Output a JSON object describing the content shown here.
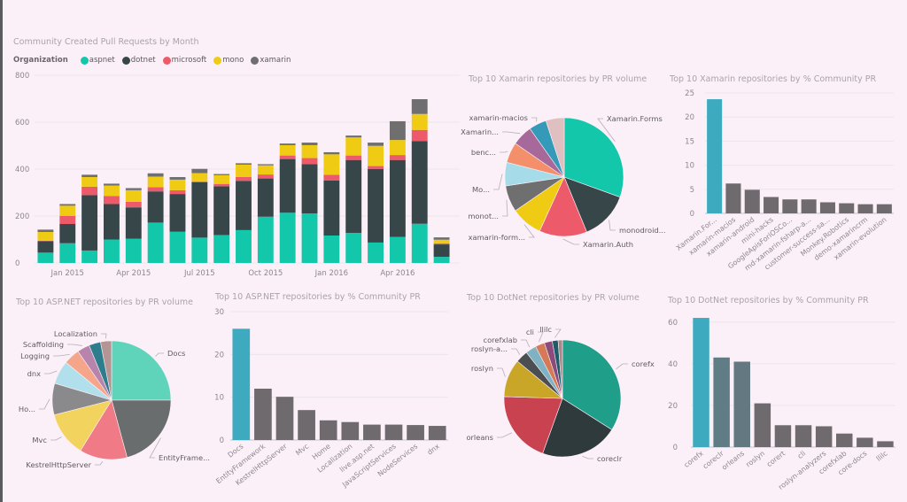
{
  "colors": {
    "background": "#fcf0f8",
    "aspnet": "#13c7ab",
    "dotnet": "#374649",
    "microsoft": "#ed5b6a",
    "mono": "#f0cb14",
    "xamarin": "#6f6f70",
    "bar_high": "#3daabf",
    "bar_low": "#6e6a6e",
    "gridline": "#ebe4ea",
    "tick_text": "#8c888c",
    "label_text": "#5e5b5e"
  },
  "chart_data": [
    {
      "id": "community-prs",
      "type": "bar",
      "stacked": true,
      "title": "Community Created Pull Requests by Month",
      "legend_title": "Organization",
      "legend_position": "top-left",
      "categories": [
        "Dec 2014",
        "Jan 2015",
        "Feb 2015",
        "Mar 2015",
        "Apr 2015",
        "May 2015",
        "Jun 2015",
        "Jul 2015",
        "Aug 2015",
        "Sep 2015",
        "Oct 2015",
        "Nov 2015",
        "Dec 2015",
        "Jan 2016",
        "Feb 2016",
        "Mar 2016",
        "Apr 2016",
        "May 2016",
        "Jun 2016"
      ],
      "x_tick_labels": [
        {
          "index": 1,
          "label": "Jan 2015"
        },
        {
          "index": 4,
          "label": "Apr 2015"
        },
        {
          "index": 7,
          "label": "Jul 2015"
        },
        {
          "index": 10,
          "label": "Oct 2015"
        },
        {
          "index": 13,
          "label": "Jan 2016"
        },
        {
          "index": 16,
          "label": "Apr 2016"
        }
      ],
      "series": [
        {
          "name": "aspnet",
          "color": "#13c7ab",
          "values": [
            44,
            84,
            53,
            100,
            103,
            172,
            133,
            108,
            119,
            140,
            197,
            214,
            211,
            117,
            128,
            87,
            111,
            167,
            26
          ]
        },
        {
          "name": "dotnet",
          "color": "#374649",
          "values": [
            49,
            82,
            236,
            151,
            134,
            133,
            161,
            236,
            208,
            210,
            163,
            229,
            210,
            235,
            311,
            314,
            328,
            352,
            53
          ]
        },
        {
          "name": "microsoft",
          "color": "#ed5b6a",
          "values": [
            2,
            35,
            36,
            34,
            24,
            18,
            16,
            4,
            10,
            17,
            17,
            15,
            26,
            24,
            19,
            12,
            21,
            48,
            5
          ]
        },
        {
          "name": "mono",
          "color": "#f0cb14",
          "values": [
            37,
            43,
            41,
            45,
            49,
            45,
            45,
            35,
            37,
            52,
            39,
            44,
            55,
            87,
            77,
            86,
            64,
            68,
            15
          ]
        },
        {
          "name": "xamarin",
          "color": "#6f6f70",
          "values": [
            10,
            7,
            10,
            8,
            9,
            14,
            11,
            18,
            5,
            6,
            5,
            7,
            11,
            9,
            8,
            14,
            80,
            63,
            10
          ]
        }
      ],
      "ylim": [
        0,
        800
      ],
      "y_ticks": [
        0,
        200,
        400,
        600,
        800
      ],
      "grid": true,
      "xlabel": "",
      "ylabel": ""
    },
    {
      "id": "xamarin-pie",
      "type": "pie",
      "title": "Top 10 Xamarin repositories by PR volume",
      "slices": [
        {
          "label": "Xamarin.Forms",
          "value": 30.5,
          "color": "#13c7ab"
        },
        {
          "label": "monodroid...",
          "value": 13.3,
          "color": "#374649"
        },
        {
          "label": "Xamarin.Auth",
          "value": 13.0,
          "color": "#ed5b6a"
        },
        {
          "label": "xamarin-form...",
          "value": 8.6,
          "color": "#f0cb14"
        },
        {
          "label": "monot...",
          "value": 7.2,
          "color": "#6f6f70"
        },
        {
          "label": "Mo...",
          "value": 6.4,
          "color": "#a6dcea"
        },
        {
          "label": "benc...",
          "value": 5.6,
          "color": "#f38f6b"
        },
        {
          "label": "Xamarin...",
          "value": 5.6,
          "color": "#a66999"
        },
        {
          "label": "xamarin-macios",
          "value": 4.8,
          "color": "#3599b8"
        },
        {
          "label": "",
          "value": 5.0,
          "color": "#dfbfbf"
        }
      ]
    },
    {
      "id": "xamarin-bar",
      "type": "bar",
      "title": "Top 10 Xamarin repositories by % Community PR",
      "categories": [
        "Xamarin.For...",
        "xamarin-macios",
        "xamarin-android",
        "mini-hacks",
        "GoogleApisForiOSCo...",
        "md-xamarin-fsharp-a...",
        "customer-success-sa...",
        "Monkey.Robotics",
        "demo-xamarincrm",
        "xamarin-evolution"
      ],
      "values": [
        23.7,
        6.2,
        4.9,
        3.4,
        2.9,
        2.9,
        2.3,
        2.1,
        1.9,
        1.9
      ],
      "ylim": [
        0,
        25
      ],
      "y_ticks": [
        0,
        5,
        10,
        15,
        20,
        25
      ],
      "grid": true,
      "xlabel": "",
      "ylabel": ""
    },
    {
      "id": "aspnet-pie",
      "type": "pie",
      "title": "Top 10 ASP.NET repositories by PR volume",
      "slices": [
        {
          "label": "Docs",
          "value": 25.0,
          "color": "#5fd4bb"
        },
        {
          "label": "EntityFrame...",
          "value": 20.8,
          "color": "#6a6d6e"
        },
        {
          "label": "KestrelHttpServer",
          "value": 13.0,
          "color": "#f07a85"
        },
        {
          "label": "Mvc",
          "value": 12.2,
          "color": "#f2d35e"
        },
        {
          "label": "Ho...",
          "value": 8.6,
          "color": "#8a8a8c"
        },
        {
          "label": "dnx",
          "value": 6.4,
          "color": "#b1e0ec"
        },
        {
          "label": "Logging",
          "value": 4.4,
          "color": "#f5a58a"
        },
        {
          "label": "Scaffolding",
          "value": 3.4,
          "color": "#b785ac"
        },
        {
          "label": "",
          "value": 3.2,
          "color": "#2e7d8c"
        },
        {
          "label": "Localization",
          "value": 3.0,
          "color": "#b59494"
        }
      ]
    },
    {
      "id": "aspnet-bar",
      "type": "bar",
      "title": "Top 10 ASP.NET repositories by % Community PR",
      "categories": [
        "Docs",
        "EntityFramework",
        "KestrelHttpServer",
        "Mvc",
        "Home",
        "Localization",
        "live.asp.net",
        "JavaScriptServices",
        "NodeServices",
        "dnx"
      ],
      "values": [
        26.0,
        12.0,
        10.1,
        7.0,
        4.6,
        4.2,
        3.6,
        3.6,
        3.5,
        3.3
      ],
      "ylim": [
        0,
        30
      ],
      "y_ticks": [
        0,
        10,
        20,
        30
      ],
      "grid": true,
      "xlabel": "",
      "ylabel": ""
    },
    {
      "id": "dotnet-pie",
      "type": "pie",
      "title": "Top 10 DotNet repositories by PR volume",
      "slices": [
        {
          "label": "corefx",
          "value": 34.0,
          "color": "#1f9e89"
        },
        {
          "label": "coreclr",
          "value": 21.5,
          "color": "#2f3a3c"
        },
        {
          "label": "orleans",
          "value": 20.0,
          "color": "#c8434f"
        },
        {
          "label": "roslyn",
          "value": 10.5,
          "color": "#c9a627"
        },
        {
          "label": "roslyn-a...",
          "value": 3.4,
          "color": "#4c4f51"
        },
        {
          "label": "corefxlab",
          "value": 3.0,
          "color": "#7fb2c2"
        },
        {
          "label": "cli",
          "value": 2.6,
          "color": "#d57a57"
        },
        {
          "label": "",
          "value": 2.2,
          "color": "#8b4c7c"
        },
        {
          "label": "llilc",
          "value": 1.6,
          "color": "#1d5c69"
        },
        {
          "label": "",
          "value": 1.2,
          "color": "#a88888"
        }
      ]
    },
    {
      "id": "dotnet-bar",
      "type": "bar",
      "title": "Top 10 DotNet repositories by % Community PR",
      "categories": [
        "corefx",
        "coreclr",
        "orleans",
        "roslyn",
        "corert",
        "cli",
        "roslyn-analyzers",
        "corefxlab",
        "core-docs",
        "llilc"
      ],
      "values": [
        62.0,
        43.0,
        41.0,
        21.0,
        10.5,
        10.5,
        10.0,
        6.5,
        4.5,
        2.8
      ],
      "ylim": [
        0,
        65
      ],
      "y_ticks": [
        0,
        20,
        40,
        60
      ],
      "grid": true,
      "xlabel": "",
      "ylabel": ""
    }
  ]
}
